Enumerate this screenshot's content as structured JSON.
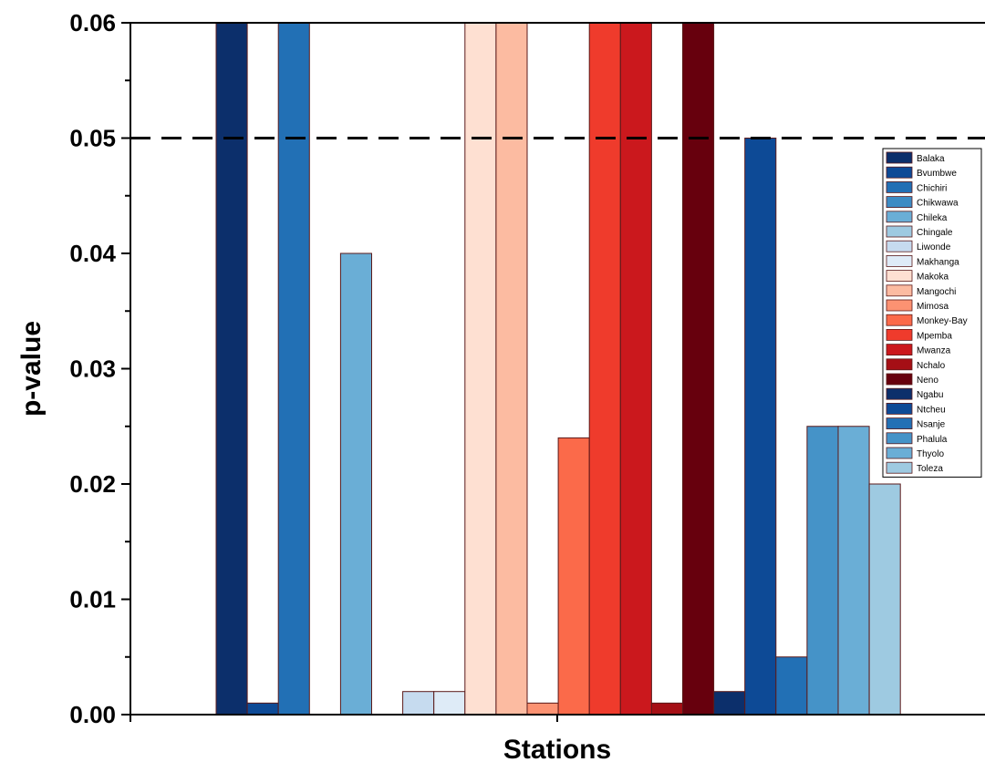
{
  "chart_data": {
    "type": "bar",
    "title": "",
    "xlabel": "Stations",
    "ylabel": "p-value",
    "ylim": [
      0,
      0.06
    ],
    "yticks": [
      "0.00",
      "0.01",
      "0.02",
      "0.03",
      "0.04",
      "0.05",
      "0.06"
    ],
    "reference_line": {
      "y": 0.05,
      "style": "dashed"
    },
    "legend_position": "top-right",
    "series": [
      {
        "name": "Balaka",
        "value": 0.06,
        "color": "#0c2f6b"
      },
      {
        "name": "Bvumbwe",
        "value": 0.001,
        "color": "#0d4a96"
      },
      {
        "name": "Chichiri",
        "value": 0.06,
        "color": "#2270b5"
      },
      {
        "name": "Chikwawa",
        "value": 0,
        "color": "#3d8cc4"
      },
      {
        "name": "Chileka",
        "value": 0.04,
        "color": "#6aaed6"
      },
      {
        "name": "Chingale",
        "value": 0,
        "color": "#9ecae1"
      },
      {
        "name": "Liwonde",
        "value": 0.002,
        "color": "#c6dbef"
      },
      {
        "name": "Makhanga",
        "value": 0.002,
        "color": "#deebf7"
      },
      {
        "name": "Makoka",
        "value": 0.06,
        "color": "#fee0d2"
      },
      {
        "name": "Mangochi",
        "value": 0.06,
        "color": "#fcbba1"
      },
      {
        "name": "Mimosa",
        "value": 0.001,
        "color": "#fc9272"
      },
      {
        "name": "Monkey-Bay",
        "value": 0.024,
        "color": "#fb6a4a"
      },
      {
        "name": "Mpemba",
        "value": 0.06,
        "color": "#ef3b2c"
      },
      {
        "name": "Mwanza",
        "value": 0.06,
        "color": "#cb181d"
      },
      {
        "name": "Nchalo",
        "value": 0.001,
        "color": "#a50f15"
      },
      {
        "name": "Neno",
        "value": 0.06,
        "color": "#67000d"
      },
      {
        "name": "Ngabu",
        "value": 0.002,
        "color": "#0c2f6b"
      },
      {
        "name": "Ntcheu",
        "value": 0.05,
        "color": "#0d4a96"
      },
      {
        "name": "Nsanje",
        "value": 0.005,
        "color": "#2270b5"
      },
      {
        "name": "Phalula",
        "value": 0.025,
        "color": "#4593c8"
      },
      {
        "name": "Thyolo",
        "value": 0.025,
        "color": "#6aaed6"
      },
      {
        "name": "Toleza",
        "value": 0.02,
        "color": "#9ecae1"
      }
    ]
  }
}
